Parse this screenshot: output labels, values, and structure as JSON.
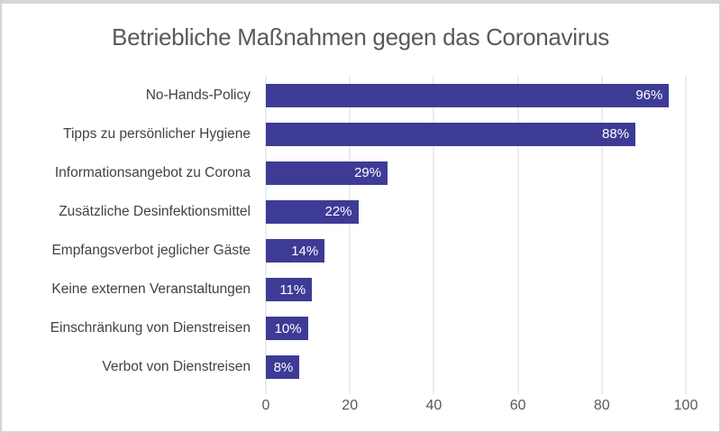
{
  "chart_data": {
    "type": "bar",
    "orientation": "horizontal",
    "title": "Betriebliche Maßnahmen gegen das Coronavirus",
    "categories": [
      "No-Hands-Policy",
      "Tipps zu persönlicher Hygiene",
      "Informationsangebot zu Corona",
      "Zusätzliche Desinfektionsmittel",
      "Empfangsverbot jeglicher Gäste",
      "Keine externen Veranstaltungen",
      "Einschränkung von Dienstreisen",
      "Verbot von Dienstreisen"
    ],
    "values": [
      96,
      88,
      29,
      22,
      14,
      11,
      10,
      8
    ],
    "value_labels": [
      "96%",
      "88%",
      "29%",
      "22%",
      "14%",
      "11%",
      "10%",
      "8%"
    ],
    "xlabel": "",
    "ylabel": "",
    "xlim": [
      0,
      100
    ],
    "x_ticks": [
      0,
      20,
      40,
      60,
      80,
      100
    ],
    "grid": "vertical-only",
    "legend": "none",
    "value_label_position": "inside-end",
    "colors": {
      "bar": "#3d3b96",
      "gridline": "#d9d9d9",
      "title_text": "#595959",
      "label_text": "#424242",
      "tick_text": "#595959",
      "value_text": "#ffffff",
      "background": "#ffffff",
      "border": "#d5d5d5"
    }
  }
}
